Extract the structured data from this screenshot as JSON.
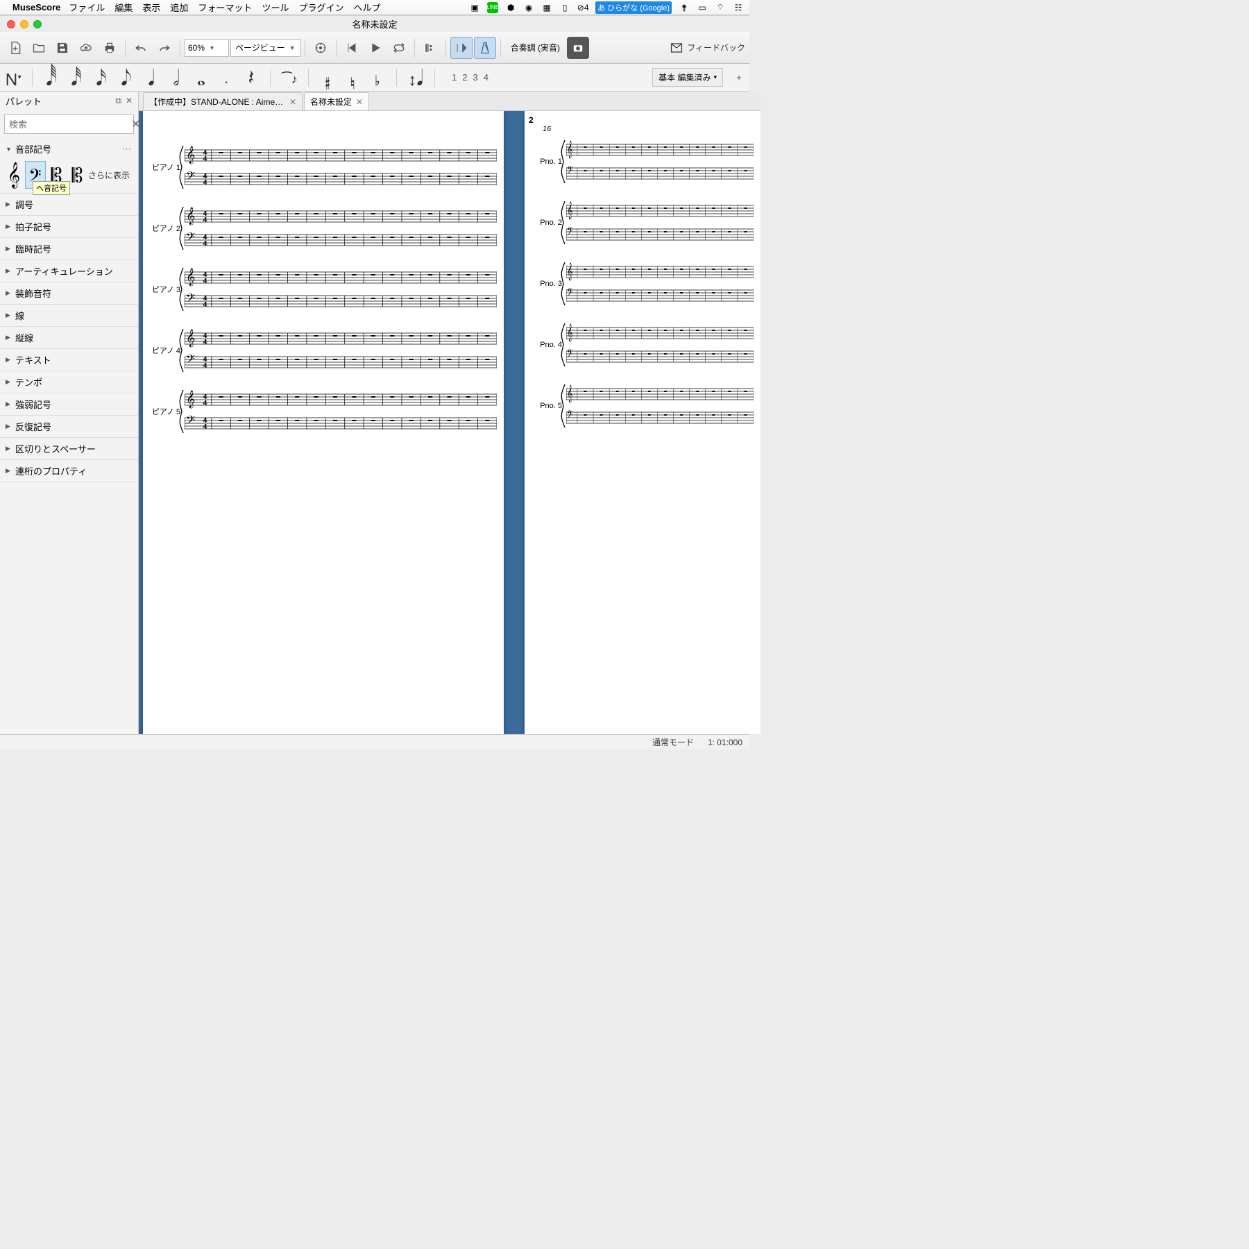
{
  "mac": {
    "appname": "MuseScore",
    "menus": [
      "ファイル",
      "編集",
      "表示",
      "追加",
      "フォーマット",
      "ツール",
      "プラグイン",
      "ヘルプ"
    ],
    "ime_label": "ひらがな (Google)",
    "clock_badge": "4"
  },
  "window": {
    "title": "名称未設定"
  },
  "toolbar": {
    "zoom": "60%",
    "layout_mode": "ページビュー",
    "concert_pitch": "合奏調 (実音)",
    "feedback": "フィードバック"
  },
  "note_toolbar": {
    "voice_numbers": [
      "1",
      "2",
      "3",
      "4"
    ],
    "workspace": "基本 編集済み"
  },
  "palette": {
    "title": "パレット",
    "search_placeholder": "検索",
    "sections": {
      "clefs": {
        "label": "音部記号",
        "more": "さらに表示",
        "tooltip": "へ音記号"
      },
      "other": [
        "調号",
        "拍子記号",
        "臨時記号",
        "アーティキュレーション",
        "装飾音符",
        "線",
        "縦線",
        "テキスト",
        "テンポ",
        "強弱記号",
        "反復記号",
        "区切りとスペーサー",
        "連桁のプロパティ"
      ]
    }
  },
  "tabs": [
    {
      "label": "【作成中】STAND-ALONE : Aimer _ 卒ライ",
      "active": false
    },
    {
      "label": "名称未設定",
      "active": true
    }
  ],
  "score": {
    "page1": {
      "instruments": [
        "ピアノ 1",
        "ピアノ 2",
        "ピアノ 3",
        "ピアノ 4",
        "ピアノ 5"
      ],
      "measures": 15,
      "show_timesig": true
    },
    "page2": {
      "number": "2",
      "rehearsal": "16",
      "instruments": [
        "Pno. 1",
        "Pno. 2",
        "Pno. 3",
        "Pno. 4",
        "Pno. 5"
      ],
      "measures": 11,
      "show_timesig": false
    }
  },
  "status": {
    "mode": "通常モード",
    "position": "1: 01:000"
  },
  "colors": {
    "accent": "#3b6a9b",
    "selected_bg": "#cfe6f7"
  }
}
